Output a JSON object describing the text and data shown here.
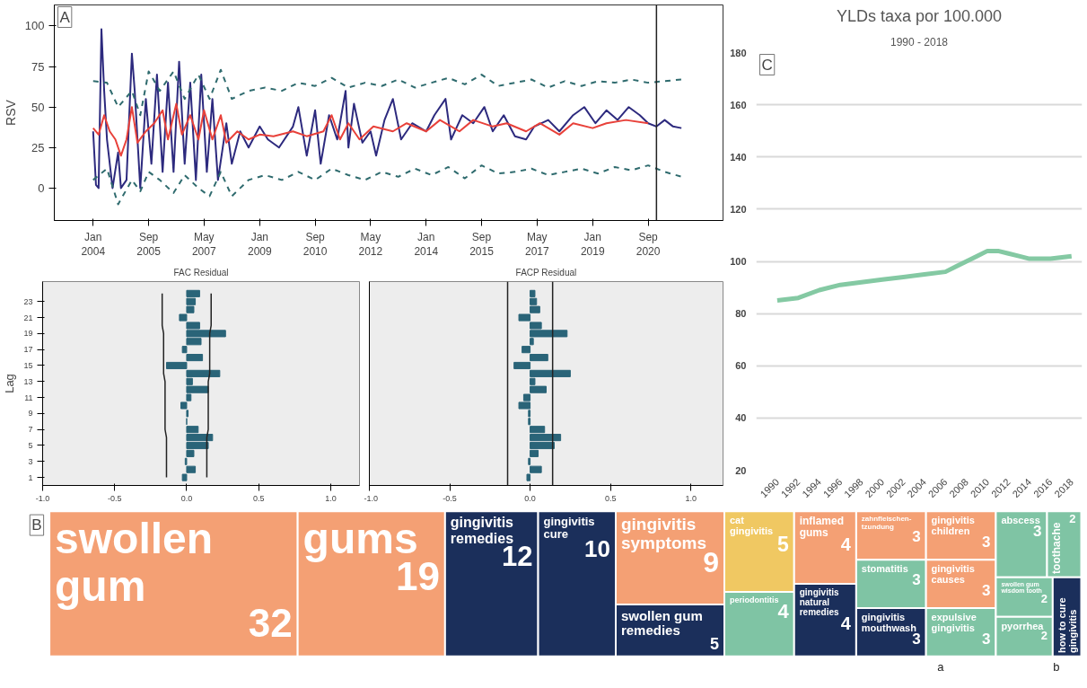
{
  "chart_data": [
    {
      "type": "line",
      "annotations": [
        "A"
      ],
      "ylabel": "RSV",
      "xlim": [
        "2002-11",
        "2022-12"
      ],
      "ylim": [
        -20,
        113
      ],
      "yticks": [
        0,
        25,
        50,
        75,
        100
      ],
      "xticks": [
        {
          "value": "2004-01",
          "label": "Jan\n2004"
        },
        {
          "value": "2005-09",
          "label": "Sep\n2005"
        },
        {
          "value": "2007-05",
          "label": "May\n2007"
        },
        {
          "value": "2009-01",
          "label": "Jan\n2009"
        },
        {
          "value": "2010-09",
          "label": "Sep\n2010"
        },
        {
          "value": "2012-05",
          "label": "May\n2012"
        },
        {
          "value": "2014-01",
          "label": "Jan\n2014"
        },
        {
          "value": "2015-09",
          "label": "Sep\n2015"
        },
        {
          "value": "2017-05",
          "label": "May\n2017"
        },
        {
          "value": "2019-01",
          "label": "Jan\n2019"
        },
        {
          "value": "2020-09",
          "label": "Sep\n2020"
        }
      ],
      "grid": false,
      "ref_lines": [
        {
          "axis": "x",
          "value": "2020-12",
          "color": "#222222"
        }
      ],
      "series": [
        {
          "color": "#2d2a7e",
          "line_style": "solid",
          "x": [
            "2004-01",
            "2004-02",
            "2004-03",
            "2004-04",
            "2004-05",
            "2004-06",
            "2004-08",
            "2004-10",
            "2004-11",
            "2005-01",
            "2005-03",
            "2005-04",
            "2005-06",
            "2005-08",
            "2005-10",
            "2005-12",
            "2006-02",
            "2006-04",
            "2006-06",
            "2006-08",
            "2006-10",
            "2006-12",
            "2007-02",
            "2007-04",
            "2007-06",
            "2007-08",
            "2007-10",
            "2008-01",
            "2008-03",
            "2008-06",
            "2008-09",
            "2009-01",
            "2009-04",
            "2009-08",
            "2010-01",
            "2010-03",
            "2010-06",
            "2010-09",
            "2010-11",
            "2011-02",
            "2011-05",
            "2011-08",
            "2011-09",
            "2011-11",
            "2012-02",
            "2012-05",
            "2012-07",
            "2012-10",
            "2013-01",
            "2013-04",
            "2013-08",
            "2014-01",
            "2014-04",
            "2014-08",
            "2014-10",
            "2015-02",
            "2015-06",
            "2015-10",
            "2016-01",
            "2016-05",
            "2016-09",
            "2017-01",
            "2017-04",
            "2017-09",
            "2018-01",
            "2018-06",
            "2018-10",
            "2019-02",
            "2019-06",
            "2019-10",
            "2020-02",
            "2020-06",
            "2020-09",
            "2020-12",
            "2021-03",
            "2021-06",
            "2021-09"
          ],
          "values": [
            35,
            2,
            0,
            98,
            60,
            30,
            0,
            22,
            0,
            5,
            83,
            60,
            0,
            55,
            15,
            70,
            10,
            65,
            10,
            78,
            15,
            65,
            5,
            70,
            10,
            55,
            5,
            40,
            15,
            35,
            25,
            38,
            30,
            25,
            38,
            50,
            20,
            48,
            15,
            45,
            30,
            60,
            25,
            52,
            28,
            35,
            20,
            42,
            55,
            30,
            40,
            35,
            45,
            55,
            30,
            45,
            40,
            50,
            35,
            45,
            32,
            30,
            38,
            42,
            35,
            45,
            50,
            40,
            48,
            42,
            50,
            45,
            40,
            38,
            42,
            38,
            37
          ]
        },
        {
          "color": "#e8413a",
          "line_style": "solid",
          "x": [
            "2004-01",
            "2004-03",
            "2004-05",
            "2004-07",
            "2004-09",
            "2004-11",
            "2005-01",
            "2005-03",
            "2005-05",
            "2005-08",
            "2005-11",
            "2006-02",
            "2006-04",
            "2006-07",
            "2006-09",
            "2006-12",
            "2007-03",
            "2007-05",
            "2007-08",
            "2007-11",
            "2008-01",
            "2008-05",
            "2008-09",
            "2009-01",
            "2009-06",
            "2010-01",
            "2010-06",
            "2010-12",
            "2011-03",
            "2011-06",
            "2011-09",
            "2012-01",
            "2012-06",
            "2013-01",
            "2013-06",
            "2014-01",
            "2014-06",
            "2015-01",
            "2015-06",
            "2016-01",
            "2016-06",
            "2017-01",
            "2017-06",
            "2018-01",
            "2018-06",
            "2019-01",
            "2019-06",
            "2020-01",
            "2020-09"
          ],
          "values": [
            37,
            33,
            45,
            35,
            30,
            20,
            30,
            50,
            28,
            35,
            40,
            48,
            30,
            52,
            33,
            45,
            30,
            48,
            30,
            45,
            28,
            35,
            30,
            33,
            32,
            35,
            32,
            35,
            45,
            30,
            40,
            30,
            38,
            35,
            40,
            35,
            42,
            35,
            42,
            38,
            40,
            35,
            40,
            33,
            40,
            37,
            40,
            42,
            40
          ]
        },
        {
          "color": "#2f6b6e",
          "line_style": "dashed",
          "x": [
            "2004-01",
            "2004-06",
            "2004-10",
            "2005-03",
            "2005-06",
            "2005-09",
            "2006-01",
            "2006-06",
            "2006-10",
            "2007-03",
            "2007-07",
            "2007-11",
            "2008-03",
            "2008-09",
            "2009-03",
            "2009-09",
            "2010-03",
            "2010-09",
            "2011-03",
            "2011-09",
            "2012-03",
            "2012-09",
            "2013-03",
            "2013-09",
            "2014-03",
            "2014-09",
            "2015-03",
            "2015-09",
            "2016-03",
            "2016-09",
            "2017-03",
            "2017-09",
            "2018-03",
            "2018-09",
            "2019-03",
            "2019-09",
            "2020-03",
            "2020-09",
            "2021-03",
            "2021-09"
          ],
          "values": [
            66,
            65,
            50,
            60,
            45,
            72,
            60,
            72,
            55,
            70,
            55,
            73,
            55,
            60,
            62,
            60,
            65,
            63,
            68,
            62,
            65,
            63,
            67,
            62,
            65,
            68,
            64,
            70,
            63,
            65,
            67,
            62,
            66,
            63,
            66,
            65,
            67,
            65,
            66,
            67
          ]
        },
        {
          "color": "#2f6b6e",
          "line_style": "dashed",
          "x": [
            "2004-01",
            "2004-06",
            "2004-10",
            "2005-03",
            "2005-06",
            "2005-09",
            "2006-01",
            "2006-06",
            "2006-10",
            "2007-03",
            "2007-07",
            "2007-11",
            "2008-03",
            "2008-09",
            "2009-03",
            "2009-09",
            "2010-03",
            "2010-09",
            "2011-03",
            "2011-09",
            "2012-03",
            "2012-09",
            "2013-03",
            "2013-09",
            "2014-03",
            "2014-09",
            "2015-03",
            "2015-09",
            "2016-03",
            "2016-09",
            "2017-03",
            "2017-09",
            "2018-03",
            "2018-09",
            "2019-03",
            "2019-09",
            "2020-03",
            "2020-09",
            "2021-03",
            "2021-09"
          ],
          "values": [
            5,
            12,
            -10,
            5,
            -2,
            10,
            5,
            -3,
            8,
            0,
            -5,
            10,
            -5,
            5,
            8,
            5,
            10,
            5,
            12,
            8,
            5,
            10,
            7,
            12,
            8,
            13,
            6,
            14,
            9,
            10,
            12,
            8,
            10,
            12,
            9,
            13,
            11,
            14,
            10,
            7
          ]
        }
      ]
    },
    {
      "type": "bar",
      "orientation": "horizontal",
      "title": "FAC Residual",
      "ylabel": "Lag",
      "grid": false,
      "xlim": [
        -1,
        1.2
      ],
      "xticks": [
        {
          "value": -1,
          "label": "-1.0"
        },
        {
          "value": -0.5,
          "label": "-0.5"
        },
        {
          "value": 0,
          "label": "0.0"
        },
        {
          "value": 0.5,
          "label": "0.5"
        },
        {
          "value": 1,
          "label": "1.0"
        }
      ],
      "categories": [
        null,
        "23",
        null,
        "21",
        null,
        "19",
        null,
        "17",
        null,
        "15",
        null,
        "13",
        null,
        "11",
        null,
        "9",
        null,
        "7",
        null,
        "5",
        null,
        "3",
        null,
        "1"
      ],
      "series": [
        {
          "color": "#2a6478",
          "values": [
            0.09,
            0.06,
            0.05,
            -0.05,
            0.09,
            0.27,
            0.1,
            -0.03,
            0.11,
            -0.14,
            0.23,
            0.04,
            0.15,
            0.03,
            -0.04,
            0.01,
            0,
            0.08,
            0.18,
            0.15,
            0.05,
            -0.01,
            0.06,
            -0.03
          ]
        },
        {
          "type": "line",
          "color": "#222222",
          "values": [
            0.17,
            0.17,
            0.17,
            0.17,
            0.17,
            0.16,
            0.16,
            0.16,
            0.16,
            0.16,
            0.16,
            0.15,
            0.15,
            0.15,
            0.15,
            0.15,
            0.15,
            0.15,
            0.14,
            0.14,
            0.14,
            0.14,
            0.14,
            0.14
          ]
        },
        {
          "type": "line",
          "color": "#222222",
          "values": [
            -0.17,
            -0.17,
            -0.17,
            -0.17,
            -0.17,
            -0.16,
            -0.16,
            -0.16,
            -0.16,
            -0.16,
            -0.16,
            -0.15,
            -0.15,
            -0.15,
            -0.15,
            -0.15,
            -0.15,
            -0.15,
            -0.14,
            -0.14,
            -0.14,
            -0.14,
            -0.14,
            -0.14
          ]
        }
      ]
    },
    {
      "type": "bar",
      "orientation": "horizontal",
      "title": "FACP Residual",
      "grid": false,
      "tick_labels": "x",
      "xlim": [
        -1,
        1.2
      ],
      "xticks": [
        {
          "value": -1,
          "label": "-1.0"
        },
        {
          "value": -0.5,
          "label": "-0.5"
        },
        {
          "value": 0,
          "label": "0.0"
        },
        {
          "value": 0.5,
          "label": "0.5"
        },
        {
          "value": 1,
          "label": "1.0"
        }
      ],
      "categories": [
        null,
        "23",
        null,
        "21",
        null,
        "19",
        null,
        "17",
        null,
        "15",
        null,
        "13",
        null,
        "11",
        null,
        "9",
        null,
        "7",
        null,
        "5",
        null,
        "3",
        null,
        "1"
      ],
      "ref_lines": [
        {
          "axis": "x",
          "value": -0.14,
          "color": "#222222"
        },
        {
          "axis": "x",
          "value": 0.14,
          "color": "#222222"
        }
      ],
      "series": [
        {
          "color": "#2a6478",
          "values": [
            0.03,
            0.04,
            0.06,
            -0.07,
            0.07,
            0.23,
            0.02,
            -0.05,
            0.11,
            -0.1,
            0.25,
            0.03,
            0.1,
            -0.04,
            -0.07,
            -0.01,
            -0.01,
            0.09,
            0.19,
            0.15,
            0.05,
            -0.01,
            0.07,
            -0.02
          ]
        }
      ]
    },
    {
      "type": "line",
      "annotations": [
        "C"
      ],
      "title": "YLDs taxa por 100.000",
      "subtitle": "1990 - 2018",
      "grid": "y",
      "xlim": [
        1988,
        2019
      ],
      "ylim": [
        20,
        180
      ],
      "yticks": [
        20,
        40,
        60,
        80,
        100,
        120,
        140,
        160,
        180
      ],
      "xticks": [
        1990,
        1992,
        1994,
        1996,
        1998,
        2000,
        2002,
        2004,
        2006,
        2008,
        2010,
        2012,
        2014,
        2016,
        2018
      ],
      "x": [
        1990,
        1992,
        1994,
        1996,
        1998,
        2000,
        2002,
        2004,
        2006,
        2007,
        2008,
        2009,
        2010,
        2011,
        2012,
        2013,
        2014,
        2016,
        2018
      ],
      "series": [
        {
          "color": "#84c9a3",
          "values": [
            85,
            86,
            89,
            91,
            92,
            93,
            94,
            95,
            96,
            98,
            100,
            102,
            104,
            104,
            103,
            102,
            101,
            101,
            102
          ]
        }
      ]
    },
    {
      "type": "other",
      "annotations": [
        "B",
        "a",
        "b"
      ],
      "data_labels": true,
      "categories": [
        "swollen gum",
        "gums",
        "gingivitis remedies",
        "gingivitis cure",
        "gingivitis symptoms",
        "swollen gum remedies",
        "cat gingivitis",
        "periodontitis",
        "inflamed gums",
        "gingivitis natural remedies",
        "zahnfleischen-tzundung",
        "stomatitis",
        "gingivitis mouthwash",
        "gingivitis children",
        "gingivitis causes",
        "expulsive gingivitis",
        "abscess",
        "toothache",
        "swollen gum wisdom tooth",
        "pyorrhea",
        "how to cure gingivitis"
      ],
      "values": [
        32,
        19,
        12,
        10,
        9,
        5,
        5,
        4,
        4,
        4,
        3,
        3,
        3,
        3,
        3,
        3,
        3,
        2,
        2,
        2,
        null
      ],
      "colors": [
        "#f4a074",
        "#f4a074",
        "#1b2f5b",
        "#1b2f5b",
        "#f4a074",
        "#1b2f5b",
        "#f0c862",
        "#7fc4a4",
        "#f4a074",
        "#1b2f5b",
        "#f4a074",
        "#7fc4a4",
        "#1b2f5b",
        "#f4a074",
        "#f4a074",
        "#7fc4a4",
        "#7fc4a4",
        "#7fc4a4",
        "#7fc4a4",
        "#7fc4a4",
        "#1b2f5b"
      ]
    }
  ]
}
